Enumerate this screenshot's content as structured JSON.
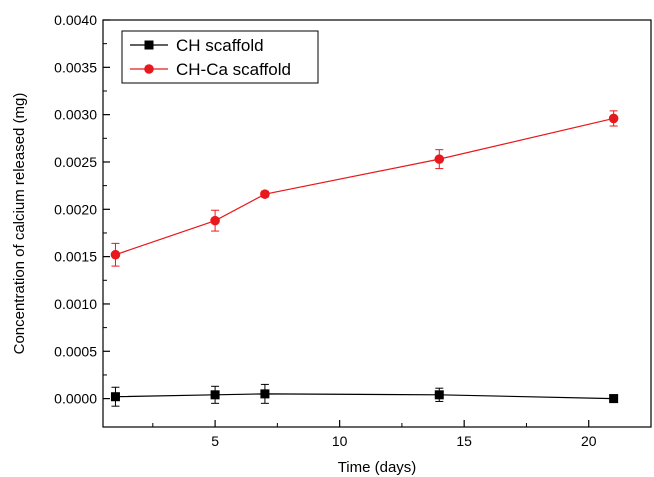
{
  "chart_data": {
    "type": "line",
    "xlabel": "Time (days)",
    "ylabel": "Concentration of calcium released (mg)",
    "xlim": [
      0.5,
      22.5
    ],
    "ylim": [
      -0.0003,
      0.004
    ],
    "x_ticks": [
      5,
      10,
      15,
      20
    ],
    "x_minor_ticks": [
      2.5,
      7.5,
      12.5,
      17.5
    ],
    "y_ticks": [
      "0.0000",
      "0.0005",
      "0.0010",
      "0.0015",
      "0.0020",
      "0.0025",
      "0.0030",
      "0.0035",
      "0.0040"
    ],
    "y_minor_ticks": [
      0.00025,
      0.00075,
      0.00125,
      0.00175,
      0.00225,
      0.00275,
      0.00325,
      0.00375
    ],
    "grid": false,
    "legend": "top-left",
    "series": [
      {
        "name": "CH scaffold",
        "color": "#000000",
        "marker": "square",
        "x": [
          1,
          5,
          7,
          14,
          21
        ],
        "y": [
          2e-05,
          4e-05,
          5e-05,
          4e-05,
          0.0
        ],
        "err": [
          0.0001,
          9e-05,
          0.0001,
          7e-05,
          4e-05
        ]
      },
      {
        "name": "CH-Ca scaffold",
        "color": "#e8191c",
        "marker": "circle",
        "x": [
          1,
          5,
          7,
          14,
          21
        ],
        "y": [
          0.00152,
          0.00188,
          0.00216,
          0.00253,
          0.00296
        ],
        "err": [
          0.00012,
          0.00011,
          3e-05,
          0.0001,
          8e-05
        ]
      }
    ]
  }
}
